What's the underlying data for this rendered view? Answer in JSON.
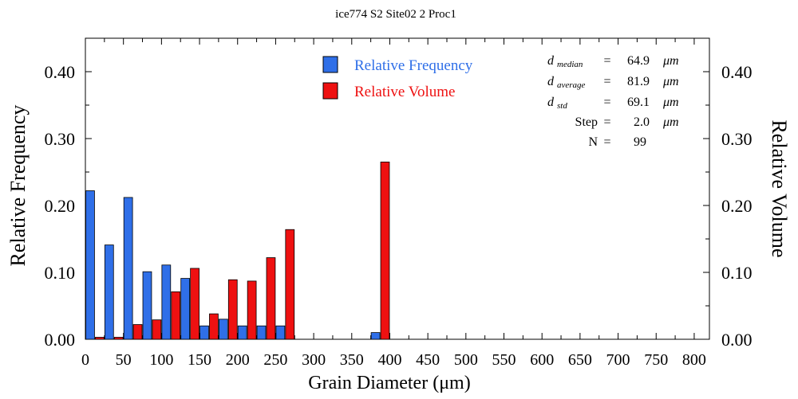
{
  "chart_data": {
    "type": "bar",
    "title": "ice774 S2 Site02 2 Proc1",
    "xlabel": "Grain Diameter (μm)",
    "ylabel_left": "Relative Frequency",
    "ylabel_right": "Relative Volume",
    "xlim": [
      0,
      820
    ],
    "ylim": [
      0,
      0.45
    ],
    "x_ticks": [
      "0",
      "50",
      "100",
      "150",
      "200",
      "250",
      "300",
      "350",
      "400",
      "450",
      "500",
      "550",
      "600",
      "650",
      "700",
      "750",
      "800"
    ],
    "y_ticks": [
      "0.00",
      "0.10",
      "0.20",
      "0.30",
      "0.40"
    ],
    "bin_width": 25,
    "bin_centers": [
      12.5,
      37.5,
      62.5,
      87.5,
      112.5,
      137.5,
      162.5,
      187.5,
      212.5,
      237.5,
      262.5,
      387.5
    ],
    "series": [
      {
        "name": "Relative Frequency",
        "color": "#2f6fe8",
        "values": [
          0.222,
          0.141,
          0.212,
          0.101,
          0.111,
          0.091,
          0.02,
          0.03,
          0.02,
          0.02,
          0.02,
          0.01
        ]
      },
      {
        "name": "Relative Volume",
        "color": "#ee1111",
        "values": [
          0.003,
          0.003,
          0.022,
          0.029,
          0.071,
          0.106,
          0.038,
          0.089,
          0.087,
          0.122,
          0.164,
          0.265
        ]
      }
    ]
  },
  "stats": [
    {
      "sym": "d",
      "sub": "median",
      "eq": "=",
      "value": "64.9",
      "unit": "μm"
    },
    {
      "sym": "d",
      "sub": "average",
      "eq": "=",
      "value": "81.9",
      "unit": "μm"
    },
    {
      "sym": "d",
      "sub": "std",
      "eq": "=",
      "value": "69.1",
      "unit": "μm"
    },
    {
      "sym": "Step",
      "sub": "",
      "eq": "=",
      "value": "2.0",
      "unit": "μm"
    },
    {
      "sym": "N",
      "sub": "",
      "eq": "=",
      "value": "99",
      "unit": ""
    }
  ]
}
